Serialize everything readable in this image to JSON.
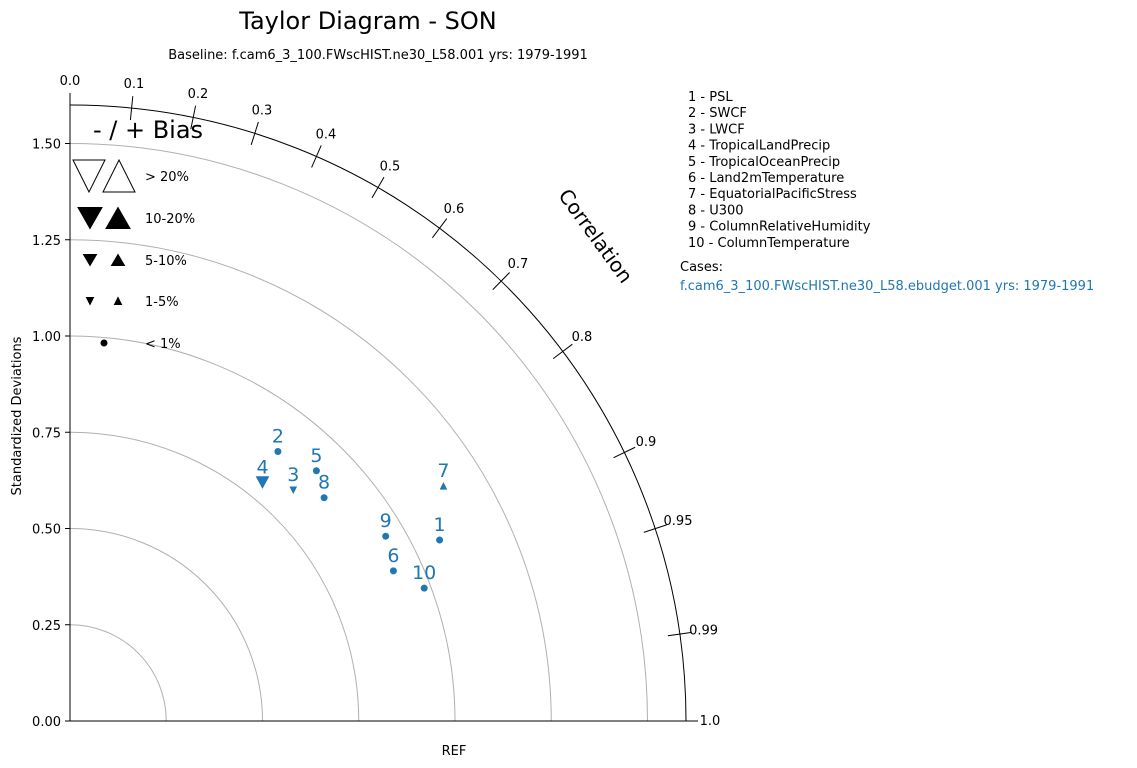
{
  "title": "Taylor Diagram - SON",
  "subtitle": "Baseline: f.cam6_3_100.FWscHIST.ne30_L58.001  yrs: 1979-1991",
  "chart_data": {
    "type": "scatter",
    "subtype": "taylor-diagram",
    "ylabel": "Standardized Deviations",
    "xlabel": "REF",
    "arc_label": "Correlation",
    "std_max": 1.6,
    "std_ticks": [
      "0.00",
      "0.25",
      "0.50",
      "0.75",
      "1.00",
      "1.25",
      "1.50"
    ],
    "std_circles": [
      0.25,
      0.5,
      0.75,
      1.0,
      1.25,
      1.5
    ],
    "corr_ticks": [
      {
        "value": 0.0,
        "label": "0.0"
      },
      {
        "value": 0.1,
        "label": "0.1"
      },
      {
        "value": 0.2,
        "label": "0.2"
      },
      {
        "value": 0.3,
        "label": "0.3"
      },
      {
        "value": 0.4,
        "label": "0.4"
      },
      {
        "value": 0.5,
        "label": "0.5"
      },
      {
        "value": 0.6,
        "label": "0.6"
      },
      {
        "value": 0.7,
        "label": "0.7"
      },
      {
        "value": 0.8,
        "label": "0.8"
      },
      {
        "value": 0.9,
        "label": "0.9"
      },
      {
        "value": 0.95,
        "label": "0.95"
      },
      {
        "value": 0.99,
        "label": "0.99"
      },
      {
        "value": 1.0,
        "label": "1.0"
      }
    ],
    "bias_legend": {
      "title": "- / + Bias",
      "entries": [
        {
          "label": "> 20%",
          "size": "xl",
          "style": "hollow"
        },
        {
          "label": "10-20%",
          "size": "lg",
          "style": "filled"
        },
        {
          "label": "5-10%",
          "size": "md",
          "style": "filled"
        },
        {
          "label": "1-5%",
          "size": "sm",
          "style": "filled"
        },
        {
          "label": "< 1%",
          "size": "dot",
          "style": "filled"
        }
      ]
    },
    "variables": [
      "1 - PSL",
      "2 - SWCF",
      "3 - LWCF",
      "4 - TropicalLandPrecip",
      "5 - TropicalOceanPrecip",
      "6 - Land2mTemperature",
      "7 - EquatorialPacificStress",
      "8 - U300",
      "9 - ColumnRelativeHumidity",
      "10 - ColumnTemperature"
    ],
    "cases_label": "Cases:",
    "cases": [
      {
        "name": "f.cam6_3_100.FWscHIST.ne30_L58.ebudget.001  yrs: 1979-1991",
        "color": "#1f77b4"
      }
    ],
    "points": [
      {
        "label": "1",
        "x": 0.96,
        "y": 0.47,
        "bias": "dot"
      },
      {
        "label": "2",
        "x": 0.54,
        "y": 0.7,
        "bias": "dot"
      },
      {
        "label": "3",
        "x": 0.58,
        "y": 0.6,
        "bias": "sm-down"
      },
      {
        "label": "4",
        "x": 0.5,
        "y": 0.62,
        "bias": "lg-down"
      },
      {
        "label": "5",
        "x": 0.64,
        "y": 0.65,
        "bias": "dot"
      },
      {
        "label": "6",
        "x": 0.84,
        "y": 0.39,
        "bias": "dot"
      },
      {
        "label": "7",
        "x": 0.97,
        "y": 0.61,
        "bias": "sm-up"
      },
      {
        "label": "8",
        "x": 0.66,
        "y": 0.58,
        "bias": "dot"
      },
      {
        "label": "9",
        "x": 0.82,
        "y": 0.48,
        "bias": "dot"
      },
      {
        "label": "10",
        "x": 0.92,
        "y": 0.345,
        "bias": "dot"
      }
    ]
  }
}
